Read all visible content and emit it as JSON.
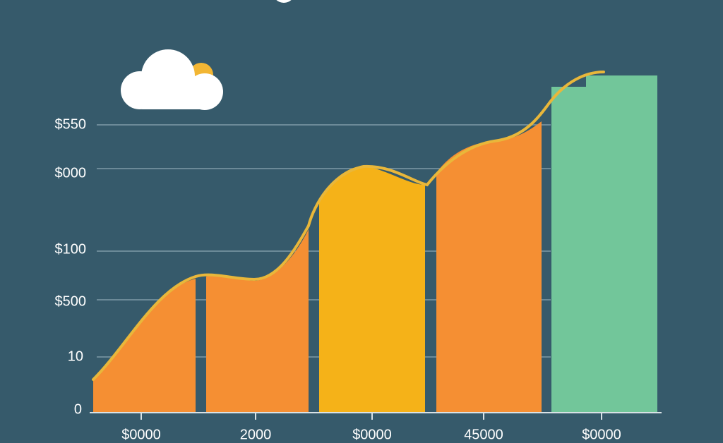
{
  "y_axis_labels": [
    "$550",
    "$000",
    "$100",
    "$500",
    "10",
    "0"
  ],
  "x_axis_labels": [
    "$0000",
    "2000",
    "$0000",
    "45000",
    "$0000"
  ]
}
